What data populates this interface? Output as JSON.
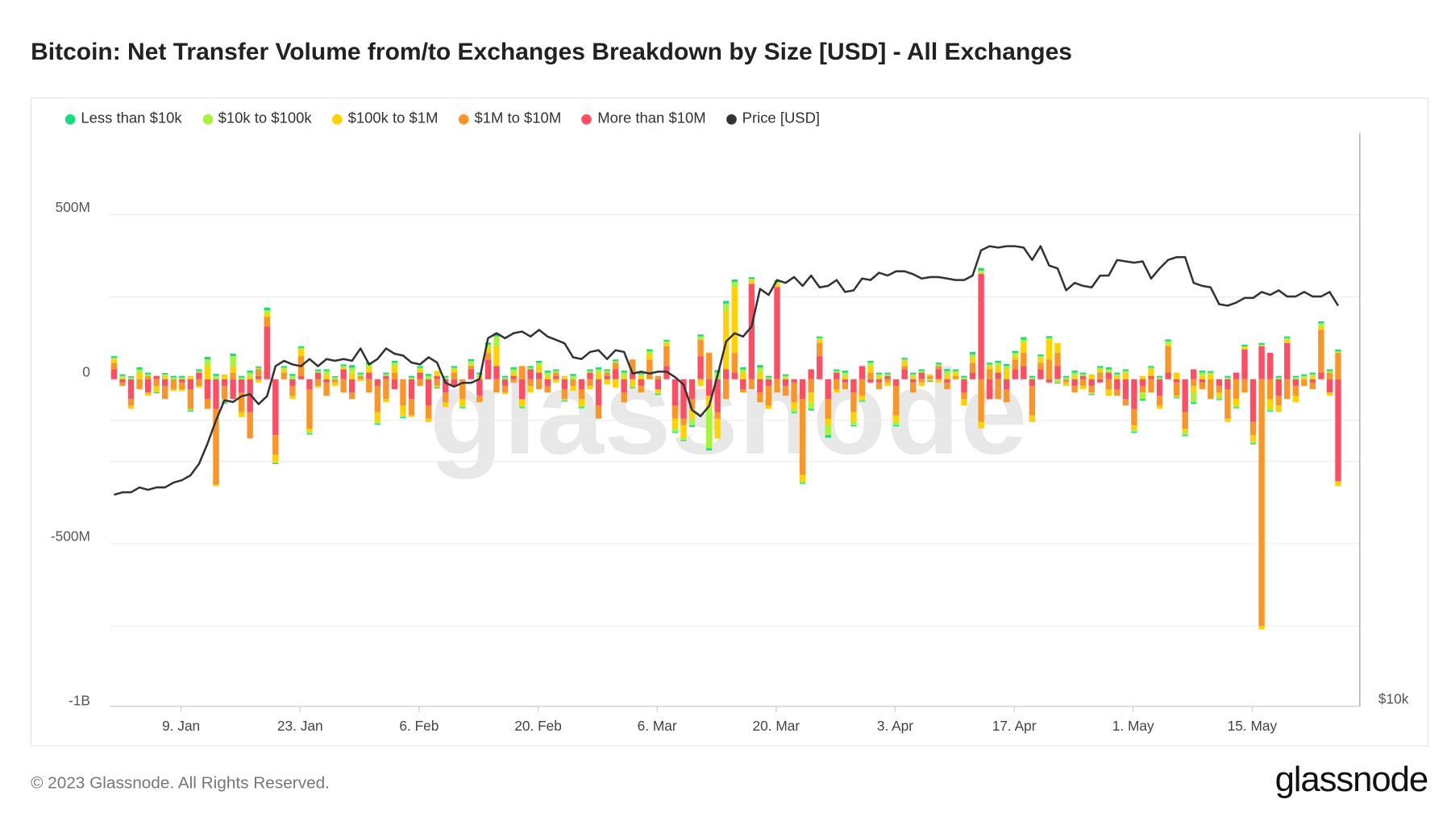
{
  "title": "Bitcoin: Net Transfer Volume from/to Exchanges Breakdown by Size [USD] - All Exchanges",
  "footer": "© 2023 Glassnode. All Rights Reserved.",
  "logo": "glassnode",
  "watermark": "glassnode",
  "chart_data": {
    "type": "bar",
    "stacked": true,
    "x_start": "2023-01-01",
    "x_step": "1 day",
    "x_ticks": [
      {
        "label": "9. Jan",
        "day": 8
      },
      {
        "label": "23. Jan",
        "day": 22
      },
      {
        "label": "6. Feb",
        "day": 36
      },
      {
        "label": "20. Feb",
        "day": 50
      },
      {
        "label": "6. Mar",
        "day": 64
      },
      {
        "label": "20. Mar",
        "day": 78
      },
      {
        "label": "3. Apr",
        "day": 92
      },
      {
        "label": "17. Apr",
        "day": 106
      },
      {
        "label": "1. May",
        "day": 120
      },
      {
        "label": "15. May",
        "day": 134
      }
    ],
    "y_ticks": [
      {
        "label": "500M",
        "value": 500
      },
      {
        "label": "0",
        "value": 0
      },
      {
        "label": "-500M",
        "value": -500
      },
      {
        "label": "-1B",
        "value": -1000
      }
    ],
    "y_unit": "USD millions",
    "ylim": [
      -1000,
      750
    ],
    "y2_label": "$10k",
    "y2_scale": "log",
    "legend_position": "top-left",
    "grid": true,
    "series": [
      {
        "name": "More than $10M",
        "color": "#ff4d63",
        "values": [
          30,
          -10,
          -60,
          0,
          -40,
          10,
          -20,
          0,
          -10,
          -30,
          20,
          -60,
          -90,
          -20,
          -60,
          -40,
          -100,
          10,
          160,
          -170,
          0,
          -20,
          10,
          -30,
          20,
          -10,
          0,
          30,
          -40,
          0,
          20,
          -20,
          10,
          -30,
          0,
          -60,
          20,
          -80,
          10,
          -40,
          -20,
          0,
          30,
          -50,
          60,
          40,
          -20,
          10,
          -60,
          30,
          20,
          -20,
          10,
          -30,
          0,
          -30,
          20,
          -80,
          10,
          30,
          -40,
          20,
          -20,
          0,
          -30,
          40,
          -80,
          -120,
          -60,
          70,
          -50,
          -100,
          30,
          20,
          -30,
          290,
          -40,
          -20,
          280,
          -20,
          -10,
          -60,
          30,
          70,
          -60,
          20,
          -10,
          -40,
          40,
          -10,
          -10,
          10,
          -20,
          30,
          -10,
          20,
          0,
          30,
          -10,
          0,
          -40,
          20,
          320,
          -60,
          20,
          -30,
          30,
          40,
          -20,
          30,
          -10,
          40,
          0,
          -20,
          10,
          -20,
          -10,
          20,
          -30,
          -60,
          -90,
          -20,
          10,
          -50,
          20,
          -10,
          -100,
          30,
          -10,
          0,
          -20,
          -30,
          20,
          90,
          -130,
          100,
          80,
          -50,
          110,
          -20,
          0,
          -10,
          20,
          -40,
          -310
        ]
      },
      {
        "name": "$1M to $10M",
        "color": "#fb9528",
        "values": [
          20,
          -10,
          -20,
          -30,
          10,
          -20,
          -40,
          -30,
          -20,
          -60,
          -20,
          -30,
          -230,
          -40,
          20,
          -60,
          -80,
          20,
          30,
          -60,
          20,
          -30,
          60,
          -120,
          -20,
          -40,
          -10,
          -40,
          -20,
          10,
          -40,
          -80,
          -60,
          20,
          -80,
          -50,
          -20,
          -40,
          -20,
          -30,
          20,
          -60,
          10,
          -20,
          20,
          -40,
          -20,
          -10,
          40,
          -20,
          -30,
          -20,
          10,
          -30,
          -20,
          -30,
          -20,
          -40,
          10,
          20,
          -30,
          40,
          -20,
          60,
          10,
          60,
          -40,
          -20,
          -30,
          50,
          80,
          -20,
          -60,
          60,
          -10,
          -30,
          -30,
          -60,
          -40,
          -30,
          -60,
          -230,
          -40,
          40,
          -60,
          -30,
          -20,
          -60,
          -50,
          20,
          -20,
          -10,
          -90,
          10,
          -30,
          -10,
          10,
          10,
          -20,
          10,
          -20,
          30,
          -130,
          30,
          -60,
          -40,
          30,
          40,
          -90,
          20,
          60,
          40,
          -10,
          -20,
          -20,
          -20,
          20,
          -30,
          -20,
          -20,
          -50,
          -20,
          -40,
          -30,
          80,
          -40,
          -50,
          -20,
          -20,
          -60,
          -20,
          -90,
          -60,
          -40,
          -40,
          -750,
          -60,
          -30,
          -60,
          -30,
          -20,
          -20,
          130,
          20,
          80
        ]
      },
      {
        "name": "$100k to $1M",
        "color": "#ffd200",
        "values": [
          10,
          5,
          -10,
          20,
          -10,
          -15,
          10,
          -5,
          -5,
          10,
          -5,
          40,
          -5,
          15,
          20,
          -15,
          10,
          -10,
          10,
          -20,
          10,
          -10,
          20,
          -10,
          -5,
          15,
          -10,
          5,
          20,
          -5,
          15,
          -30,
          -10,
          20,
          -30,
          -5,
          10,
          -10,
          15,
          -15,
          10,
          -20,
          5,
          10,
          15,
          60,
          -5,
          10,
          -20,
          -20,
          20,
          10,
          -10,
          10,
          -15,
          -20,
          -10,
          20,
          -15,
          -25,
          10,
          -20,
          10,
          15,
          -10,
          10,
          -30,
          -40,
          -30,
          -20,
          -40,
          -60,
          180,
          200,
          20,
          10,
          20,
          -10,
          10,
          5,
          -20,
          -20,
          -30,
          10,
          -20,
          -10,
          10,
          -30,
          -10,
          20,
          10,
          -10,
          -20,
          15,
          10,
          -10,
          5,
          -10,
          15,
          10,
          -20,
          15,
          -20,
          10,
          20,
          30,
          10,
          30,
          -20,
          15,
          60,
          30,
          -10,
          10,
          -10,
          15,
          10,
          -20,
          10,
          20,
          -15,
          10,
          20,
          -10,
          5,
          20,
          -10,
          -20,
          10,
          15,
          -10,
          -10,
          -20,
          5,
          -20,
          -10,
          -30,
          -20,
          10,
          -20,
          5,
          10,
          10,
          -10,
          -15
        ]
      },
      {
        "name": "$10k to $100k",
        "color": "#a6f53a",
        "values": [
          5,
          5,
          5,
          10,
          5,
          -5,
          5,
          5,
          5,
          -5,
          5,
          20,
          10,
          -10,
          30,
          5,
          10,
          5,
          10,
          -5,
          5,
          10,
          5,
          -5,
          5,
          10,
          5,
          5,
          15,
          5,
          10,
          -5,
          5,
          10,
          -5,
          5,
          5,
          10,
          -5,
          5,
          5,
          -5,
          10,
          5,
          10,
          30,
          5,
          10,
          -5,
          5,
          10,
          10,
          5,
          -5,
          10,
          -5,
          5,
          10,
          5,
          5,
          10,
          -5,
          5,
          10,
          -5,
          5,
          -10,
          -5,
          -20,
          10,
          -120,
          20,
          20,
          15,
          10,
          5,
          15,
          5,
          5,
          5,
          -10,
          -5,
          -20,
          5,
          -30,
          5,
          10,
          -10,
          -5,
          10,
          5,
          5,
          -10,
          5,
          5,
          5,
          -5,
          5,
          10,
          5,
          5,
          10,
          10,
          5,
          10,
          10,
          10,
          10,
          5,
          5,
          5,
          -10,
          5,
          10,
          5,
          -5,
          5,
          10,
          5,
          5,
          -5,
          -20,
          5,
          5,
          10,
          -5,
          -10,
          -30,
          10,
          5,
          -10,
          5,
          -5,
          5,
          -5,
          5,
          -5,
          5,
          5,
          5,
          5,
          5,
          10,
          5,
          5
        ]
      },
      {
        "name": "Less than $10k",
        "color": "#16de7c",
        "values": [
          5,
          5,
          4,
          6,
          5,
          -3,
          4,
          5,
          5,
          -3,
          5,
          8,
          6,
          -4,
          8,
          5,
          6,
          4,
          8,
          -3,
          5,
          6,
          5,
          -3,
          5,
          5,
          4,
          5,
          8,
          5,
          6,
          -3,
          5,
          6,
          -3,
          5,
          5,
          6,
          -3,
          5,
          5,
          -3,
          6,
          5,
          6,
          10,
          5,
          6,
          -3,
          5,
          6,
          6,
          5,
          -3,
          6,
          -3,
          5,
          6,
          5,
          5,
          6,
          -3,
          5,
          6,
          -3,
          5,
          -3,
          -3,
          -5,
          6,
          -6,
          8,
          8,
          8,
          6,
          5,
          8,
          5,
          5,
          5,
          -3,
          -3,
          -5,
          5,
          -8,
          5,
          6,
          -3,
          -3,
          6,
          5,
          5,
          -3,
          5,
          5,
          5,
          -3,
          5,
          6,
          5,
          5,
          8,
          8,
          5,
          6,
          6,
          6,
          8,
          5,
          5,
          6,
          -3,
          5,
          6,
          5,
          -3,
          5,
          6,
          5,
          5,
          -3,
          -5,
          5,
          5,
          6,
          -3,
          -3,
          -5,
          6,
          5,
          -3,
          5,
          -3,
          5,
          -3,
          5,
          -3,
          5,
          5,
          5,
          5,
          5,
          6,
          5,
          5
        ]
      }
    ],
    "line_series": {
      "name": "Price [USD]",
      "color": "#333333",
      "unit": "USD thousands",
      "values": [
        16.6,
        16.7,
        16.7,
        16.9,
        16.8,
        16.9,
        16.9,
        17.1,
        17.2,
        17.4,
        17.9,
        18.8,
        19.9,
        20.9,
        20.8,
        21.1,
        21.2,
        20.7,
        21.1,
        22.7,
        23.0,
        22.8,
        22.7,
        23.1,
        22.7,
        23.1,
        23.0,
        23.1,
        23.0,
        23.7,
        22.8,
        23.1,
        23.7,
        23.4,
        23.3,
        22.9,
        22.8,
        23.2,
        22.9,
        21.8,
        21.6,
        21.8,
        21.8,
        22.0,
        24.3,
        24.6,
        24.3,
        24.6,
        24.7,
        24.4,
        24.8,
        24.4,
        24.2,
        24.0,
        23.2,
        23.1,
        23.5,
        23.6,
        23.1,
        23.6,
        23.5,
        22.3,
        22.4,
        22.3,
        22.4,
        22.4,
        22.1,
        21.7,
        20.4,
        20.1,
        20.6,
        22.2,
        24.1,
        24.6,
        24.4,
        25.0,
        27.4,
        27.0,
        28.0,
        27.8,
        28.2,
        27.6,
        28.3,
        27.5,
        27.6,
        28.0,
        27.2,
        27.3,
        28.1,
        28.0,
        28.5,
        28.3,
        28.6,
        28.6,
        28.4,
        28.1,
        28.2,
        28.2,
        28.1,
        28.0,
        28.0,
        28.3,
        30.1,
        30.4,
        30.3,
        30.4,
        30.4,
        30.3,
        29.4,
        30.4,
        29.0,
        28.8,
        27.3,
        27.8,
        27.6,
        27.5,
        28.3,
        28.3,
        29.4,
        29.3,
        29.2,
        29.3,
        28.1,
        28.8,
        29.4,
        29.6,
        29.6,
        27.8,
        27.6,
        27.5,
        26.4,
        26.3,
        26.5,
        26.8,
        26.8,
        27.2,
        27.0,
        27.3,
        26.9,
        26.9,
        27.2,
        26.9,
        26.9,
        27.2,
        26.3
      ]
    },
    "legend": [
      {
        "label": "Less than $10k",
        "color": "#16de7c"
      },
      {
        "label": "$10k to $100k",
        "color": "#a6f53a"
      },
      {
        "label": "$100k to $1M",
        "color": "#ffd200"
      },
      {
        "label": "$1M to $10M",
        "color": "#fb9528"
      },
      {
        "label": "More than $10M",
        "color": "#ff4d63"
      },
      {
        "label": "Price [USD]",
        "color": "#333333"
      }
    ]
  }
}
